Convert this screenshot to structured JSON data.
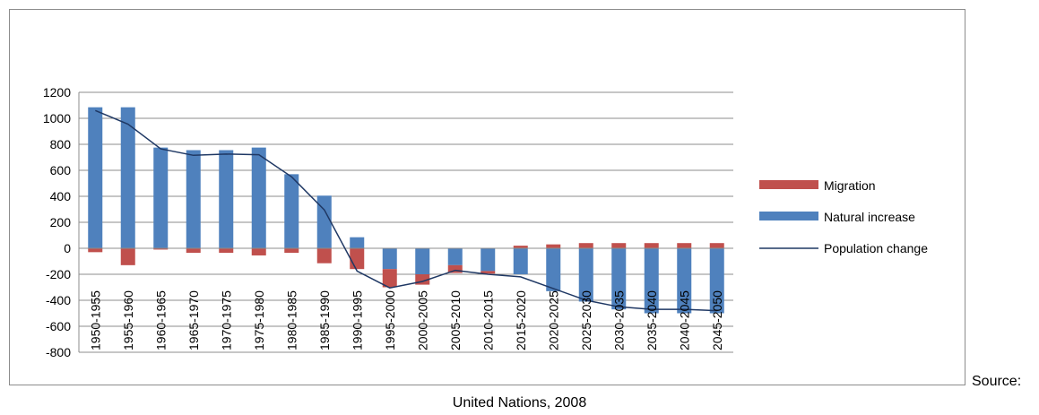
{
  "chart_data": {
    "type": "bar",
    "stacked": true,
    "categories": [
      "1950-1955",
      "1955-1960",
      "1960-1965",
      "1965-1970",
      "1970-1975",
      "1975-1980",
      "1980-1985",
      "1985-1990",
      "1990-1995",
      "1995-2000",
      "2000-2005",
      "2005-2010",
      "2010-2015",
      "2015-2020",
      "2020-2025",
      "2025-2030",
      "2030-2035",
      "2035-2040",
      "2040-2045",
      "2045-2050"
    ],
    "series": [
      {
        "name": "Migration",
        "kind": "bar",
        "color": "#c0504d",
        "values": [
          -30,
          -130,
          -10,
          -35,
          -35,
          -55,
          -35,
          -115,
          -160,
          -140,
          -80,
          -60,
          -20,
          20,
          30,
          40,
          40,
          40,
          40,
          40
        ]
      },
      {
        "name": "Natural increase",
        "kind": "bar",
        "color": "#4f81bd",
        "values": [
          1085,
          1085,
          775,
          755,
          755,
          775,
          570,
          405,
          85,
          -160,
          -200,
          -130,
          -175,
          -200,
          -330,
          -410,
          -470,
          -500,
          -500,
          -500
        ]
      },
      {
        "name": "Population change",
        "kind": "line",
        "color": "#1f3864",
        "values": [
          1060,
          955,
          765,
          715,
          725,
          720,
          550,
          295,
          -175,
          -305,
          -255,
          -170,
          -200,
          -220,
          -310,
          -400,
          -450,
          -470,
          -470,
          -480
        ]
      }
    ],
    "yticks": [
      1200,
      1000,
      800,
      600,
      400,
      200,
      0,
      -200,
      -400,
      -600,
      -800
    ],
    "ylim": [
      -800,
      1200
    ],
    "grid": true,
    "legend": "right"
  },
  "source_label": "Source:",
  "caption": "United Nations, 2008"
}
